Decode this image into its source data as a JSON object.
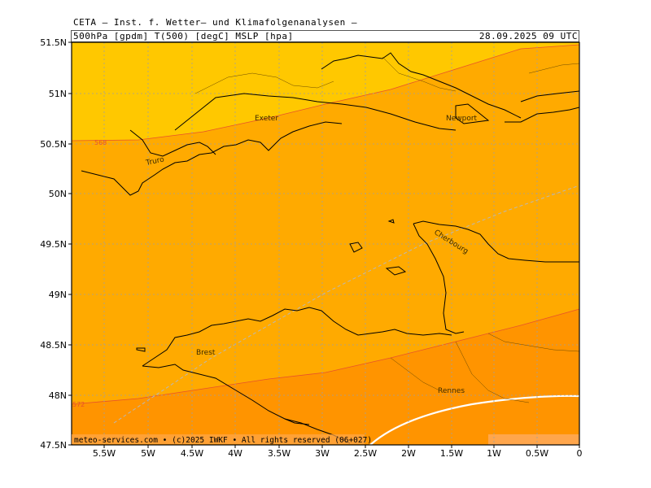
{
  "header": {
    "line1": "CETA – Inst. f. Wetter– und Klimafolgenanalysen –",
    "line2": "500hPa [gpdm] T(500) [degC] MSLP [hpa]",
    "datetime": "28.09.2025 09 UTC"
  },
  "credit": "meteo-services.com • (c)2025 IWKF • All rights reserved (06+027)",
  "colors": {
    "band_high": "#ffc800",
    "band_mid": "#ffaa00",
    "band_low": "#ff9400",
    "band_lowest": "#ffa64c",
    "contour": "#e8522a",
    "isotherm": "#ffffff",
    "grid": "#a0a0a0",
    "coast": "#000000"
  },
  "axes": {
    "y_labels": [
      "51.5N",
      "51N",
      "50.5N",
      "50N",
      "49.5N",
      "49N",
      "48.5N",
      "48N",
      "47.5N"
    ],
    "x_labels": [
      "5.5W",
      "5W",
      "4.5W",
      "4W",
      "3.5W",
      "3W",
      "2.5W",
      "2W",
      "1.5W",
      "1W",
      "0.5W",
      "0"
    ]
  },
  "contours": [
    {
      "label": "568"
    },
    {
      "label": "572"
    }
  ],
  "cities": [
    {
      "name": "Exeter"
    },
    {
      "name": "Newport"
    },
    {
      "name": "Truro"
    },
    {
      "name": "Cherbourg"
    },
    {
      "name": "Brest"
    },
    {
      "name": "Rennes"
    }
  ]
}
